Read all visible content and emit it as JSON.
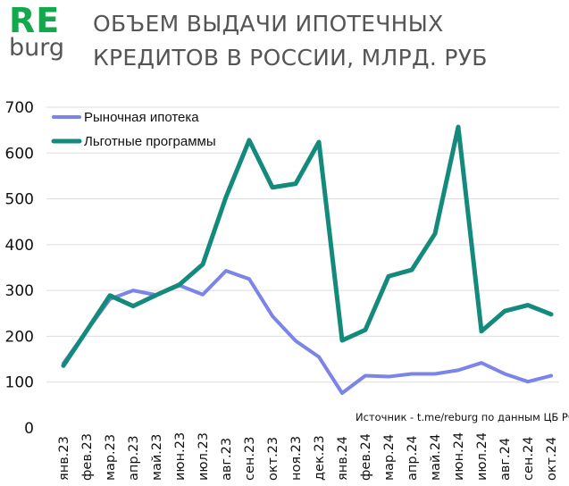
{
  "logo": {
    "top": "RE",
    "bottom": "burg"
  },
  "title": "ОБЪЕМ ВЫДАЧИ ИПОТЕЧНЫХ КРЕДИТОВ В РОССИИ, МЛРД. РУБ",
  "source": "Источник  - t.me/reburg по данным  ЦБ РФ",
  "colors": {
    "market": "#7b84e8",
    "preferential": "#138a7b",
    "brand": "#12a84b",
    "grid": "#dddddd"
  },
  "chart_data": {
    "type": "line",
    "categories": [
      "янв.23",
      "фев.23",
      "мар.23",
      "апр.23",
      "май.23",
      "июн.23",
      "июл.23",
      "авг.23",
      "сен.23",
      "окт.23",
      "ноя.23",
      "дек.23",
      "янв.24",
      "фев.24",
      "мар.24",
      "апр.24",
      "май.24",
      "июн.24",
      "июл.24",
      "авг.24",
      "сен.24",
      "окт.24"
    ],
    "series": [
      {
        "name": "Рыночная ипотека",
        "color": "#7b84e8",
        "values": [
          141,
          212,
          281,
          300,
          290,
          311,
          291,
          343,
          325,
          244,
          190,
          155,
          76,
          114,
          112,
          118,
          118,
          126,
          142,
          118,
          101,
          114
        ]
      },
      {
        "name": "Льготные программы",
        "color": "#138a7b",
        "values": [
          136,
          212,
          289,
          266,
          290,
          313,
          357,
          504,
          628,
          525,
          533,
          624,
          191,
          214,
          331,
          345,
          424,
          657,
          211,
          255,
          268,
          248
        ]
      }
    ],
    "ylim": [
      0,
      700
    ],
    "yticks": [
      0,
      100,
      200,
      300,
      400,
      500,
      600,
      700
    ],
    "grid": true,
    "legend": "top-left"
  }
}
